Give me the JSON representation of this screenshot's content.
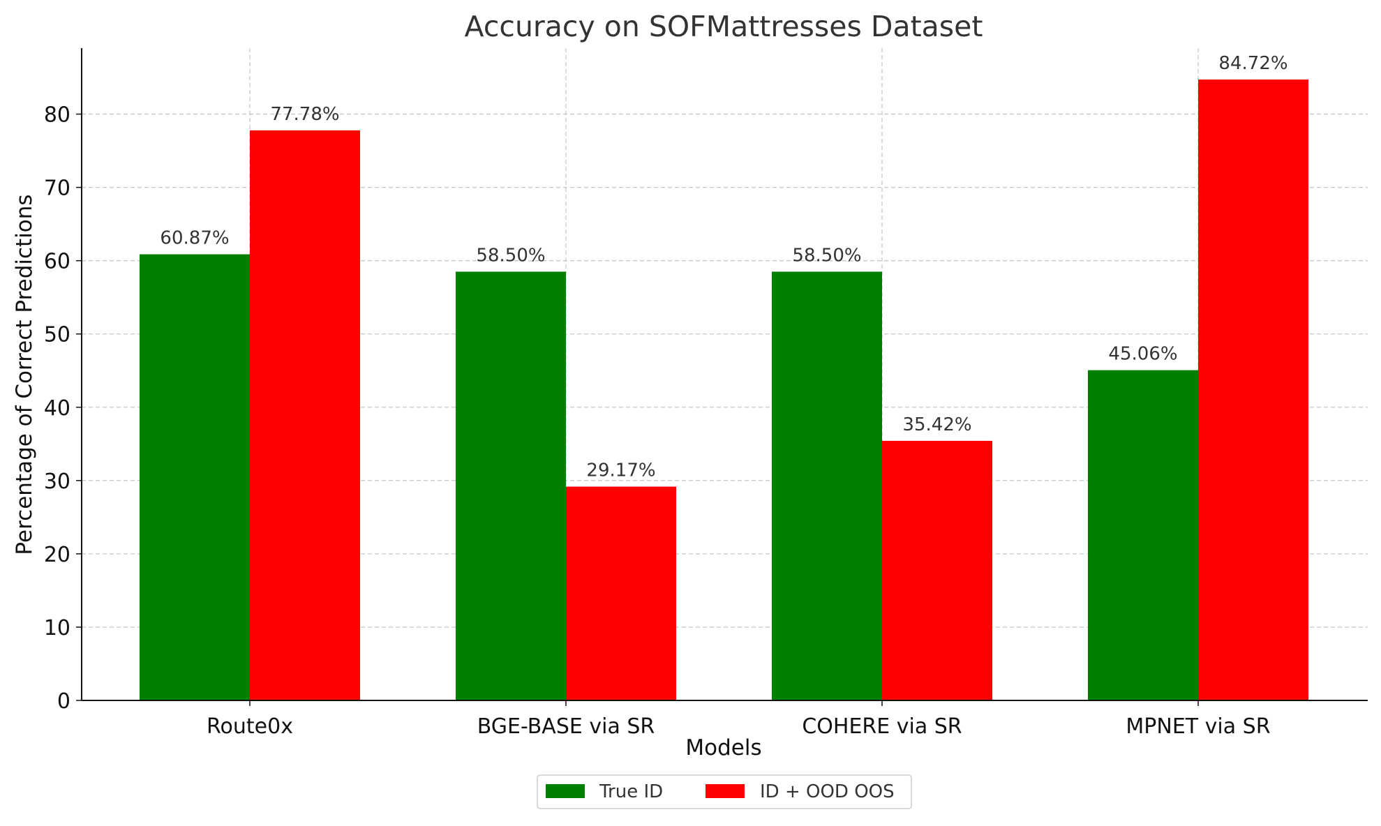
{
  "chart_data": {
    "type": "bar",
    "title": "Accuracy on SOFMattresses Dataset",
    "xlabel": "Models",
    "ylabel": "Percentage of Correct Predictions",
    "categories": [
      "Route0x",
      "BGE-BASE via SR",
      "COHERE via SR",
      "MPNET via SR"
    ],
    "series": [
      {
        "name": "True ID",
        "color": "#008000",
        "values": [
          60.87,
          58.5,
          58.5,
          45.06
        ],
        "labels": [
          "60.87%",
          "58.50%",
          "58.50%",
          "45.06%"
        ]
      },
      {
        "name": "ID + OOD OOS",
        "color": "#ff0000",
        "values": [
          77.78,
          29.17,
          35.42,
          84.72
        ],
        "labels": [
          "77.78%",
          "29.17%",
          "35.42%",
          "84.72%"
        ]
      }
    ],
    "ylim": [
      0,
      89
    ],
    "yticks": [
      0,
      10,
      20,
      30,
      40,
      50,
      60,
      70,
      80
    ],
    "grid": true,
    "legend_position": "bottom-center"
  }
}
